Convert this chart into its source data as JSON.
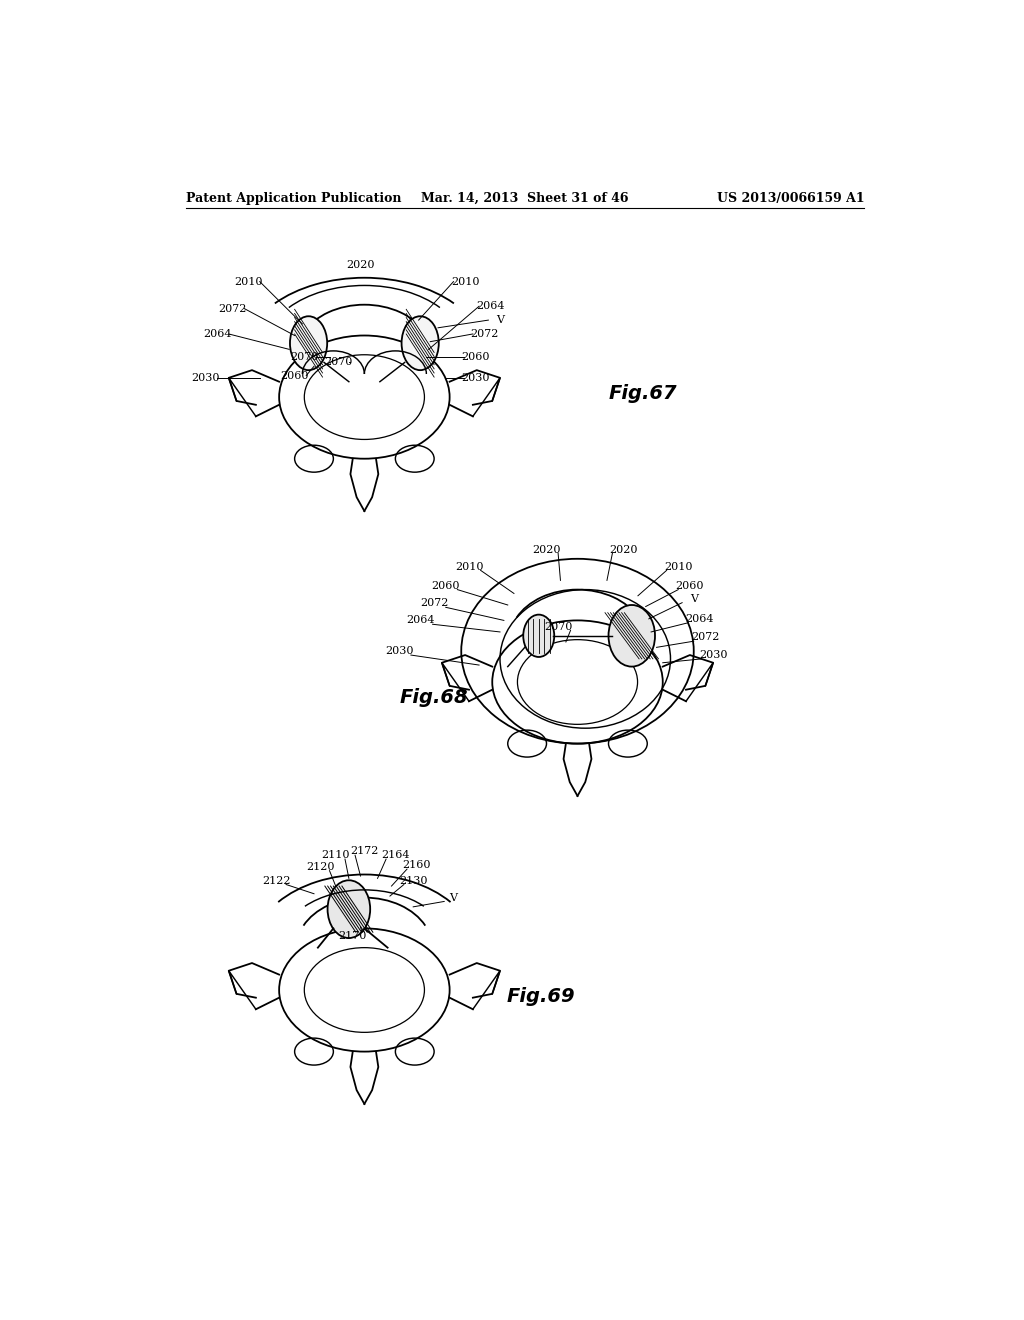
{
  "header_left": "Patent Application Publication",
  "header_middle": "Mar. 14, 2013  Sheet 31 of 46",
  "header_right": "US 2013/0066159 A1",
  "background_color": "#ffffff",
  "fig67_label": "Fig.67",
  "fig68_label": "Fig.68",
  "fig69_label": "Fig.69",
  "line_color": "#000000",
  "text_color": "#000000",
  "font_size_header": 9,
  "font_size_fig": 14,
  "font_size_ann": 8
}
